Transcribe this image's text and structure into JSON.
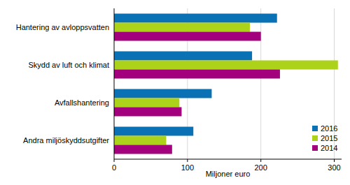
{
  "chart_data": {
    "type": "bar",
    "orientation": "horizontal",
    "x_label": "Miljoner euro",
    "categories": [
      "Hantering av avloppsvatten",
      "Skydd av luft och klimat",
      "Avfallshantering",
      "Andra miljöskyddsutgifter"
    ],
    "series": [
      {
        "name": "2016",
        "color": "#0a72b4",
        "values": [
          222,
          188,
          133,
          108
        ]
      },
      {
        "name": "2015",
        "color": "#acd21a",
        "values": [
          185,
          305,
          89,
          71
        ]
      },
      {
        "name": "2014",
        "color": "#a3007d",
        "values": [
          200,
          226,
          92,
          79
        ]
      }
    ],
    "xlim": [
      0,
      310
    ],
    "xticks": [
      0,
      100,
      200,
      300
    ],
    "grid": true,
    "legend": "lower right"
  }
}
